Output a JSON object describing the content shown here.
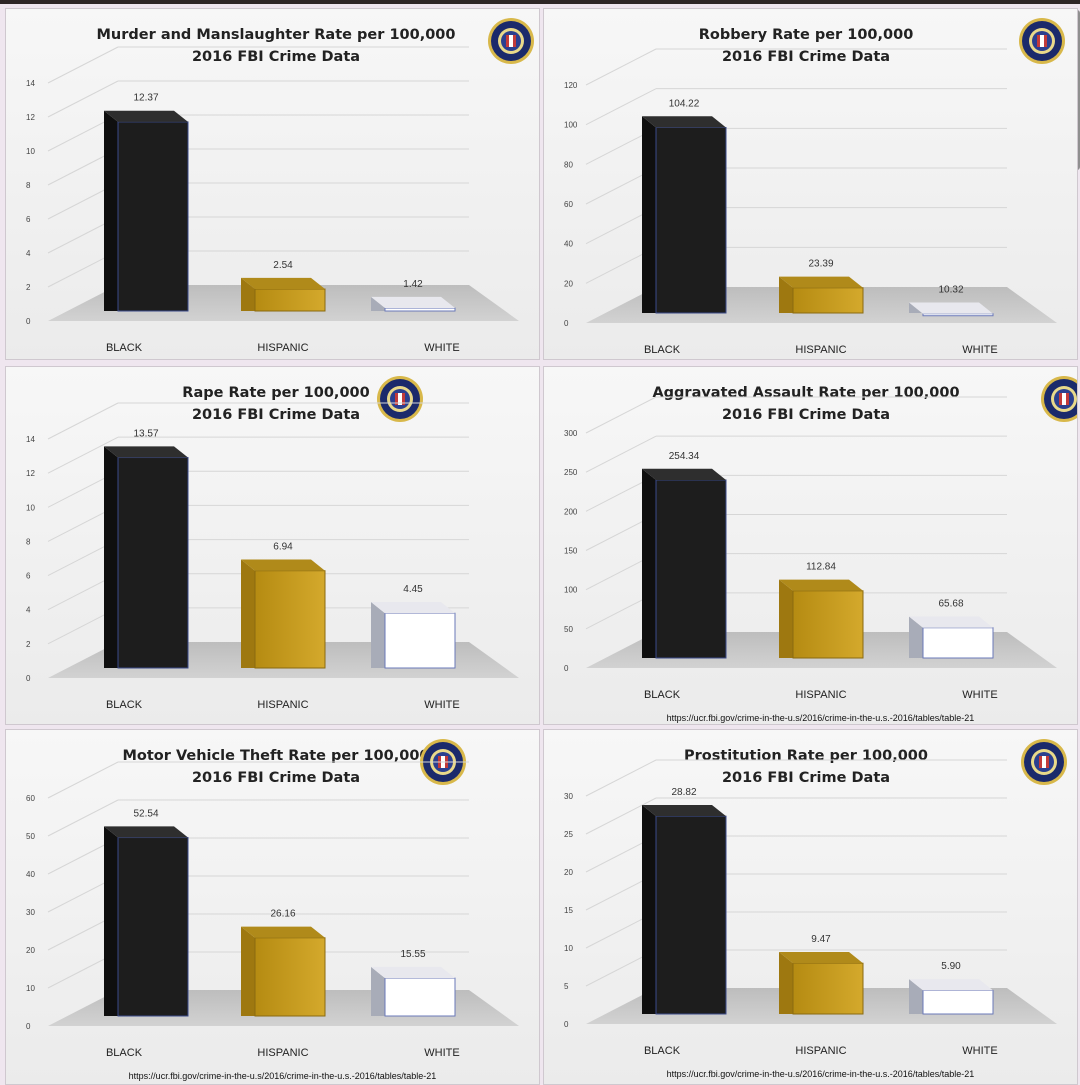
{
  "colors": {
    "black": "#1d1d1d",
    "hispanic": "#c49b1e",
    "white": "#ffffff",
    "floor": "#c9c9c9"
  },
  "seal_icon": "fbi-seal-icon",
  "chart_data": [
    {
      "type": "bar",
      "title": "Murder and Manslaughter Rate per 100,000",
      "subtitle": "2016 FBI Crime Data",
      "categories": [
        "BLACK",
        "HISPANIC",
        "WHITE"
      ],
      "values": [
        12.37,
        2.54,
        1.42
      ],
      "value_labels": [
        "12.37",
        "2.54",
        "1.42"
      ],
      "yticks": [
        "0",
        "2",
        "4",
        "6",
        "8",
        "10",
        "12",
        "14"
      ],
      "ylim": [
        0,
        14
      ],
      "grid": true,
      "source": ""
    },
    {
      "type": "bar",
      "title": "Robbery Rate per 100,000",
      "subtitle": "2016 FBI Crime Data",
      "categories": [
        "BLACK",
        "HISPANIC",
        "WHITE"
      ],
      "values": [
        104.22,
        23.39,
        10.32
      ],
      "value_labels": [
        "104.22",
        "23.39",
        "10.32"
      ],
      "yticks": [
        "0",
        "20",
        "40",
        "60",
        "80",
        "100",
        "120"
      ],
      "ylim": [
        0,
        120
      ],
      "grid": true,
      "source": ""
    },
    {
      "type": "bar",
      "title": "Rape Rate per 100,000",
      "subtitle": "2016 FBI Crime Data",
      "categories": [
        "BLACK",
        "HISPANIC",
        "WHITE"
      ],
      "values": [
        13.57,
        6.94,
        4.45
      ],
      "value_labels": [
        "13.57",
        "6.94",
        "4.45"
      ],
      "yticks": [
        "0",
        "2",
        "4",
        "6",
        "8",
        "10",
        "12",
        "14"
      ],
      "ylim": [
        0,
        14
      ],
      "grid": true,
      "source": ""
    },
    {
      "type": "bar",
      "title": "Aggravated Assault Rate per 100,000",
      "subtitle": "2016 FBI Crime Data",
      "categories": [
        "BLACK",
        "HISPANIC",
        "WHITE"
      ],
      "values": [
        254.34,
        112.84,
        65.68
      ],
      "value_labels": [
        "254.34",
        "112.84",
        "65.68"
      ],
      "yticks": [
        "0",
        "50",
        "100",
        "150",
        "200",
        "250",
        "300"
      ],
      "ylim": [
        0,
        300
      ],
      "grid": true,
      "source": "https://ucr.fbi.gov/crime-in-the-u.s/2016/crime-in-the-u.s.-2016/tables/table-21"
    },
    {
      "type": "bar",
      "title": "Motor Vehicle Theft Rate per 100,000",
      "subtitle": "2016 FBI Crime Data",
      "categories": [
        "BLACK",
        "HISPANIC",
        "WHITE"
      ],
      "values": [
        52.54,
        26.16,
        15.55
      ],
      "value_labels": [
        "52.54",
        "26.16",
        "15.55"
      ],
      "yticks": [
        "0",
        "10",
        "20",
        "30",
        "40",
        "50",
        "60"
      ],
      "ylim": [
        0,
        60
      ],
      "grid": true,
      "source": "https://ucr.fbi.gov/crime-in-the-u.s/2016/crime-in-the-u.s.-2016/tables/table-21"
    },
    {
      "type": "bar",
      "title": "Prostitution Rate per 100,000",
      "subtitle": "2016 FBI Crime Data",
      "categories": [
        "BLACK",
        "HISPANIC",
        "WHITE"
      ],
      "values": [
        28.82,
        9.47,
        5.9
      ],
      "value_labels": [
        "28.82",
        "9.47",
        "5.90"
      ],
      "yticks": [
        "0",
        "5",
        "10",
        "15",
        "20",
        "25",
        "30"
      ],
      "ylim": [
        0,
        30
      ],
      "grid": true,
      "source": "https://ucr.fbi.gov/crime-in-the-u.s/2016/crime-in-the-u.s.-2016/tables/table-21"
    }
  ]
}
